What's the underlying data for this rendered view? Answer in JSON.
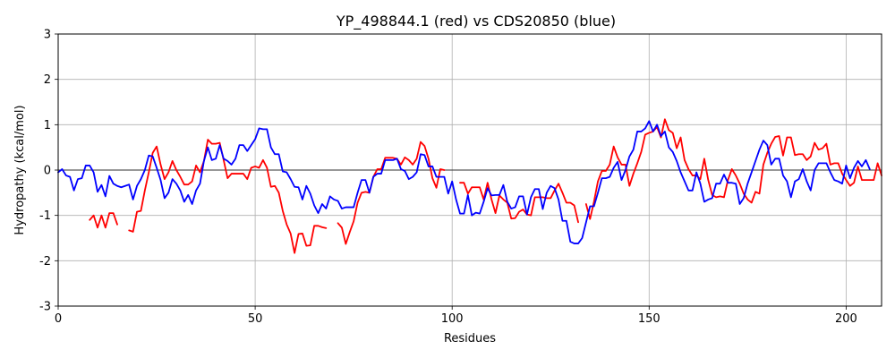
{
  "chart_data": {
    "type": "line",
    "title": "YP_498844.1 (red) vs CDS20850 (blue)",
    "xlabel": "Residues",
    "ylabel": "Hydropathy (kcal/mol)",
    "xlim": [
      0,
      209
    ],
    "ylim": [
      -3,
      3
    ],
    "xticks": [
      0,
      50,
      100,
      150,
      200
    ],
    "yticks": [
      -3,
      -2,
      -1,
      0,
      1,
      2,
      3
    ],
    "grid": true,
    "zero_line": true,
    "series": [
      {
        "color": "#ff0000",
        "values": [
          null,
          null,
          null,
          null,
          null,
          null,
          null,
          null,
          -1.1,
          -1.0,
          -1.27,
          -1.0,
          -1.27,
          -0.95,
          -0.95,
          -1.2,
          null,
          null,
          -1.33,
          -1.36,
          -0.92,
          -0.9,
          -0.45,
          -0.05,
          0.38,
          0.52,
          0.12,
          -0.2,
          -0.05,
          0.2,
          0.0,
          -0.15,
          -0.32,
          -0.32,
          -0.25,
          0.1,
          -0.05,
          0.2,
          0.67,
          0.58,
          0.58,
          0.6,
          0.22,
          -0.18,
          -0.08,
          -0.08,
          -0.08,
          -0.08,
          -0.2,
          0.05,
          0.08,
          0.05,
          0.22,
          0.05,
          -0.37,
          -0.35,
          -0.5,
          -0.9,
          -1.2,
          -1.4,
          -1.83,
          -1.41,
          -1.4,
          -1.67,
          -1.66,
          -1.23,
          -1.23,
          -1.26,
          -1.28,
          null,
          null,
          -1.17,
          -1.27,
          -1.63,
          -1.37,
          -1.13,
          -0.72,
          -0.5,
          -0.48,
          -0.5,
          -0.15,
          0.02,
          0.02,
          0.27,
          0.27,
          0.27,
          0.25,
          0.12,
          0.28,
          0.22,
          0.12,
          0.25,
          0.62,
          0.53,
          0.25,
          -0.18,
          -0.39,
          0.02,
          0.0,
          null,
          null,
          null,
          -0.28,
          -0.28,
          -0.52,
          -0.38,
          -0.38,
          -0.38,
          -0.65,
          -0.28,
          -0.65,
          -0.95,
          -0.56,
          -0.65,
          -0.72,
          -1.07,
          -1.06,
          -0.92,
          -0.87,
          -0.98,
          -1.0,
          -0.6,
          -0.6,
          -0.6,
          -0.62,
          -0.62,
          -0.45,
          -0.3,
          -0.5,
          -0.72,
          -0.72,
          -0.78,
          -1.15,
          null,
          -0.75,
          -1.08,
          -0.7,
          -0.25,
          -0.02,
          -0.02,
          0.12,
          0.52,
          0.28,
          0.12,
          0.12,
          -0.35,
          -0.08,
          0.15,
          0.4,
          0.78,
          0.82,
          0.85,
          0.95,
          0.72,
          1.12,
          0.88,
          0.82,
          0.48,
          0.72,
          0.22,
          0.02,
          -0.12,
          -0.12,
          -0.2,
          0.25,
          -0.22,
          -0.55,
          -0.6,
          -0.58,
          -0.6,
          -0.22,
          0.02,
          -0.12,
          -0.3,
          -0.52,
          -0.65,
          -0.72,
          -0.48,
          -0.52,
          0.12,
          0.38,
          0.58,
          0.73,
          0.75,
          0.32,
          0.72,
          0.72,
          0.33,
          0.35,
          0.35,
          0.22,
          0.3,
          0.6,
          0.45,
          0.48,
          0.58,
          0.12,
          0.15,
          0.15,
          -0.08,
          -0.22,
          -0.35,
          -0.28,
          0.08,
          -0.22,
          -0.22,
          -0.22,
          -0.22,
          0.15,
          -0.12
        ]
      },
      {
        "color": "#0000ff",
        "values": [
          -0.05,
          0.02,
          -0.12,
          -0.15,
          -0.45,
          -0.2,
          -0.18,
          0.1,
          0.1,
          -0.05,
          -0.48,
          -0.33,
          -0.58,
          -0.13,
          -0.3,
          -0.35,
          -0.38,
          -0.35,
          -0.32,
          -0.65,
          -0.35,
          -0.2,
          0.0,
          0.32,
          0.3,
          0.05,
          -0.22,
          -0.62,
          -0.5,
          -0.2,
          -0.3,
          -0.45,
          -0.7,
          -0.55,
          -0.75,
          -0.45,
          -0.3,
          0.2,
          0.5,
          0.22,
          0.25,
          0.55,
          0.25,
          0.2,
          0.12,
          0.25,
          0.55,
          0.55,
          0.42,
          0.55,
          0.68,
          0.92,
          0.9,
          0.9,
          0.5,
          0.35,
          0.35,
          -0.03,
          -0.05,
          -0.2,
          -0.37,
          -0.38,
          -0.65,
          -0.35,
          -0.52,
          -0.78,
          -0.95,
          -0.75,
          -0.85,
          -0.58,
          -0.65,
          -0.68,
          -0.85,
          -0.82,
          -0.82,
          -0.82,
          -0.5,
          -0.22,
          -0.22,
          -0.5,
          -0.15,
          -0.08,
          -0.08,
          0.22,
          0.22,
          0.22,
          0.25,
          0.02,
          -0.02,
          -0.2,
          -0.15,
          -0.05,
          0.35,
          0.33,
          0.08,
          0.08,
          -0.15,
          -0.15,
          -0.15,
          -0.52,
          -0.25,
          -0.65,
          -0.96,
          -0.96,
          -0.55,
          -1.0,
          -0.94,
          -0.96,
          -0.7,
          -0.4,
          -0.56,
          -0.55,
          -0.55,
          -0.33,
          -0.7,
          -0.85,
          -0.82,
          -0.58,
          -0.58,
          -0.98,
          -0.6,
          -0.42,
          -0.42,
          -0.86,
          -0.5,
          -0.35,
          -0.4,
          -0.65,
          -1.12,
          -1.12,
          -1.58,
          -1.62,
          -1.62,
          -1.5,
          -1.15,
          -0.8,
          -0.8,
          -0.5,
          -0.18,
          -0.18,
          -0.15,
          0.05,
          0.18,
          -0.22,
          0.0,
          0.3,
          0.45,
          0.85,
          0.85,
          0.92,
          1.08,
          0.85,
          1.0,
          0.75,
          0.85,
          0.5,
          0.4,
          0.2,
          -0.05,
          -0.25,
          -0.45,
          -0.45,
          -0.05,
          -0.3,
          -0.7,
          -0.65,
          -0.62,
          -0.3,
          -0.3,
          -0.1,
          -0.28,
          -0.28,
          -0.3,
          -0.75,
          -0.62,
          -0.3,
          -0.05,
          0.2,
          0.45,
          0.65,
          0.55,
          0.12,
          0.25,
          0.25,
          -0.12,
          -0.25,
          -0.6,
          -0.25,
          -0.2,
          0.02,
          -0.25,
          -0.45,
          0.0,
          0.15,
          0.15,
          0.15,
          -0.05,
          -0.22,
          -0.25,
          -0.3,
          0.1,
          -0.18,
          0.05,
          0.2,
          0.08,
          0.22,
          0.02
        ]
      }
    ]
  }
}
